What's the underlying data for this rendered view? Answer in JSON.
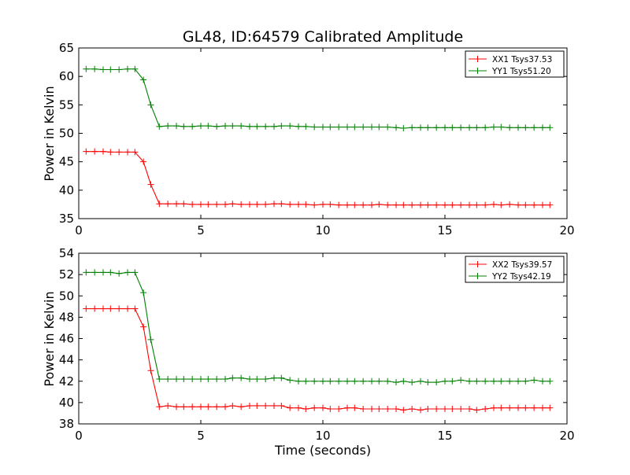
{
  "chart_data": [
    {
      "type": "line",
      "title": "GL48, ID:64579 Calibrated Amplitude",
      "xlabel": "",
      "ylabel": "Power in Kelvin",
      "xlim": [
        0,
        20
      ],
      "ylim": [
        35,
        65
      ],
      "x_ticks": [
        "0",
        "5",
        "10",
        "15",
        "20"
      ],
      "y_ticks": [
        "35",
        "40",
        "45",
        "50",
        "55",
        "60",
        "65"
      ],
      "legend_position": "top-right",
      "grid": false,
      "x": [
        0.3,
        0.65,
        1.0,
        1.3,
        1.65,
        2.0,
        2.3,
        2.65,
        2.95,
        3.3,
        3.65,
        4.0,
        4.3,
        4.65,
        5.0,
        5.3,
        5.65,
        6.0,
        6.3,
        6.65,
        7.0,
        7.3,
        7.65,
        8.0,
        8.3,
        8.65,
        9.0,
        9.3,
        9.65,
        10.0,
        10.3,
        10.65,
        11.0,
        11.3,
        11.65,
        12.0,
        12.3,
        12.65,
        13.0,
        13.3,
        13.65,
        14.0,
        14.3,
        14.65,
        15.0,
        15.3,
        15.65,
        16.0,
        16.3,
        16.65,
        17.0,
        17.3,
        17.65,
        18.0,
        18.3,
        18.65,
        19.0,
        19.3
      ],
      "series": [
        {
          "name": "XX1 Tsys37.53",
          "color": "#ff0000",
          "values": [
            46.8,
            46.8,
            46.8,
            46.7,
            46.7,
            46.7,
            46.7,
            45.0,
            41.0,
            37.6,
            37.6,
            37.6,
            37.6,
            37.5,
            37.5,
            37.5,
            37.5,
            37.5,
            37.6,
            37.5,
            37.5,
            37.5,
            37.5,
            37.6,
            37.6,
            37.5,
            37.5,
            37.5,
            37.4,
            37.5,
            37.5,
            37.4,
            37.4,
            37.4,
            37.4,
            37.4,
            37.5,
            37.4,
            37.4,
            37.4,
            37.4,
            37.4,
            37.4,
            37.4,
            37.4,
            37.4,
            37.4,
            37.4,
            37.4,
            37.4,
            37.5,
            37.4,
            37.5,
            37.4,
            37.4,
            37.4,
            37.4,
            37.4
          ]
        },
        {
          "name": "YY1 Tsys51.20",
          "color": "#008000",
          "values": [
            61.3,
            61.3,
            61.2,
            61.2,
            61.2,
            61.3,
            61.3,
            59.4,
            55.0,
            51.2,
            51.3,
            51.3,
            51.2,
            51.2,
            51.3,
            51.3,
            51.2,
            51.3,
            51.3,
            51.3,
            51.2,
            51.2,
            51.2,
            51.2,
            51.3,
            51.3,
            51.2,
            51.2,
            51.1,
            51.1,
            51.1,
            51.1,
            51.1,
            51.1,
            51.1,
            51.1,
            51.1,
            51.1,
            51.0,
            50.9,
            51.0,
            51.0,
            51.0,
            51.0,
            51.0,
            51.0,
            51.0,
            51.0,
            51.0,
            51.0,
            51.1,
            51.1,
            51.0,
            51.0,
            51.0,
            51.0,
            51.0,
            51.0
          ]
        }
      ]
    },
    {
      "type": "line",
      "title": "",
      "xlabel": "Time (seconds)",
      "ylabel": "Power in Kelvin",
      "xlim": [
        0,
        20
      ],
      "ylim": [
        38,
        54
      ],
      "x_ticks": [
        "0",
        "5",
        "10",
        "15",
        "20"
      ],
      "y_ticks": [
        "38",
        "40",
        "42",
        "44",
        "46",
        "48",
        "50",
        "52",
        "54"
      ],
      "legend_position": "top-right",
      "grid": false,
      "x": [
        0.3,
        0.65,
        1.0,
        1.3,
        1.65,
        2.0,
        2.3,
        2.65,
        2.95,
        3.3,
        3.65,
        4.0,
        4.3,
        4.65,
        5.0,
        5.3,
        5.65,
        6.0,
        6.3,
        6.65,
        7.0,
        7.3,
        7.65,
        8.0,
        8.3,
        8.65,
        9.0,
        9.3,
        9.65,
        10.0,
        10.3,
        10.65,
        11.0,
        11.3,
        11.65,
        12.0,
        12.3,
        12.65,
        13.0,
        13.3,
        13.65,
        14.0,
        14.3,
        14.65,
        15.0,
        15.3,
        15.65,
        16.0,
        16.3,
        16.65,
        17.0,
        17.3,
        17.65,
        18.0,
        18.3,
        18.65,
        19.0,
        19.3
      ],
      "series": [
        {
          "name": "XX2 Tsys39.57",
          "color": "#ff0000",
          "values": [
            48.8,
            48.8,
            48.8,
            48.8,
            48.8,
            48.8,
            48.8,
            47.1,
            43.0,
            39.6,
            39.7,
            39.6,
            39.6,
            39.6,
            39.6,
            39.6,
            39.6,
            39.6,
            39.7,
            39.6,
            39.7,
            39.7,
            39.7,
            39.7,
            39.7,
            39.5,
            39.5,
            39.4,
            39.5,
            39.5,
            39.4,
            39.4,
            39.5,
            39.5,
            39.4,
            39.4,
            39.4,
            39.4,
            39.4,
            39.3,
            39.4,
            39.3,
            39.4,
            39.4,
            39.4,
            39.4,
            39.4,
            39.4,
            39.3,
            39.4,
            39.5,
            39.5,
            39.5,
            39.5,
            39.5,
            39.5,
            39.5,
            39.5
          ]
        },
        {
          "name": "YY2 Tsys42.19",
          "color": "#008000",
          "values": [
            52.2,
            52.2,
            52.2,
            52.2,
            52.1,
            52.2,
            52.2,
            50.3,
            45.9,
            42.2,
            42.2,
            42.2,
            42.2,
            42.2,
            42.2,
            42.2,
            42.2,
            42.2,
            42.3,
            42.3,
            42.2,
            42.2,
            42.2,
            42.3,
            42.3,
            42.1,
            42.0,
            42.0,
            42.0,
            42.0,
            42.0,
            42.0,
            42.0,
            42.0,
            42.0,
            42.0,
            42.0,
            42.0,
            41.9,
            42.0,
            41.9,
            42.0,
            41.9,
            41.9,
            42.0,
            42.0,
            42.1,
            42.0,
            42.0,
            42.0,
            42.0,
            42.0,
            42.0,
            42.0,
            42.0,
            42.1,
            42.0,
            42.0
          ]
        }
      ]
    }
  ]
}
